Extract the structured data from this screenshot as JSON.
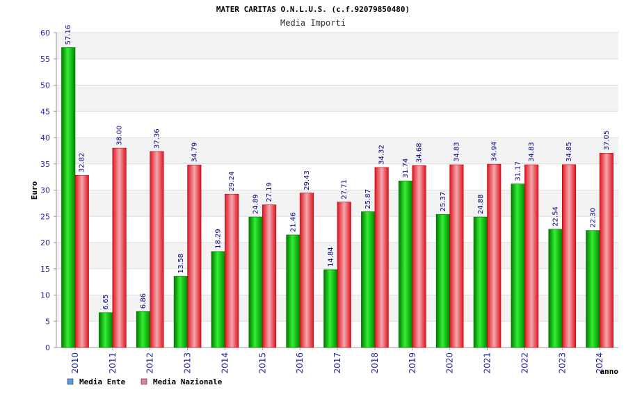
{
  "chart_data": {
    "type": "bar",
    "title": "MATER CARITAS O.N.L.U.S. (c.f.92079850480)",
    "subtitle": "Media Importi",
    "xlabel": "anno",
    "ylabel": "Euro",
    "ylim": [
      0,
      60
    ],
    "yticks": [
      0,
      5,
      10,
      15,
      20,
      25,
      30,
      35,
      40,
      45,
      50,
      55,
      60
    ],
    "grid": true,
    "legend_position": "bottom-left",
    "categories": [
      "2010",
      "2011",
      "2012",
      "2013",
      "2014",
      "2015",
      "2016",
      "2017",
      "2018",
      "2019",
      "2020",
      "2021",
      "2022",
      "2023",
      "2024"
    ],
    "series": [
      {
        "name": "Media Ente",
        "color": "#00b000",
        "legend_color": "#5b9bd5",
        "values": [
          57.16,
          6.65,
          6.86,
          13.58,
          18.29,
          24.89,
          21.46,
          14.84,
          25.87,
          31.74,
          25.37,
          24.88,
          31.17,
          22.54,
          22.3
        ],
        "labels": [
          "57.16",
          "6.65",
          "6.86",
          "13.58",
          "18.29",
          "24.89",
          "21.46",
          "14.84",
          "25.87",
          "31.74",
          "25.37",
          "24.88",
          "31.17",
          "22.54",
          "22.30"
        ]
      },
      {
        "name": "Media Nazionale",
        "color": "#e8202a",
        "legend_color": "#e0809a",
        "values": [
          32.82,
          38.0,
          37.36,
          34.79,
          29.24,
          27.19,
          29.43,
          27.71,
          34.32,
          34.68,
          34.83,
          34.94,
          34.83,
          34.85,
          37.05
        ],
        "labels": [
          "32.82",
          "38.00",
          "37.36",
          "34.79",
          "29.24",
          "27.19",
          "29.43",
          "27.71",
          "34.32",
          "34.68",
          "34.83",
          "34.94",
          "34.83",
          "34.85",
          "37.05"
        ]
      }
    ]
  }
}
